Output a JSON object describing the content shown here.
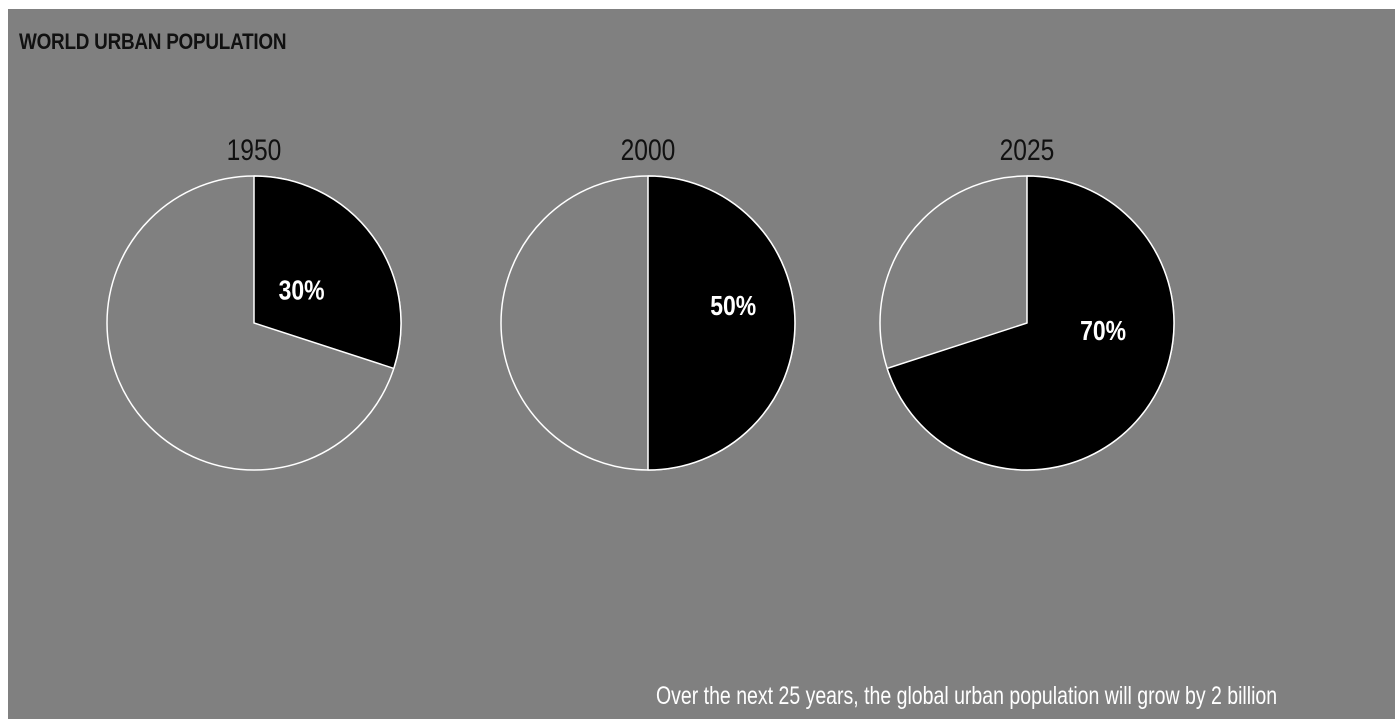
{
  "title": "WORLD URBAN POPULATION",
  "footnote": "Over the next 25 years, the global urban population will grow by 2 billion",
  "colors": {
    "background": "#808080",
    "urban": "#000000",
    "outline": "#ffffff",
    "text_dark": "#111111",
    "text_light": "#ffffff"
  },
  "chart_data": [
    {
      "type": "pie",
      "title": "1950",
      "slices": [
        {
          "label": "30%",
          "value": 30,
          "color": "#000000"
        },
        {
          "label": "",
          "value": 70,
          "color": "#808080"
        }
      ]
    },
    {
      "type": "pie",
      "title": "2000",
      "slices": [
        {
          "label": "50%",
          "value": 50,
          "color": "#000000"
        },
        {
          "label": "",
          "value": 50,
          "color": "#808080"
        }
      ]
    },
    {
      "type": "pie",
      "title": "2025",
      "slices": [
        {
          "label": "70%",
          "value": 70,
          "color": "#000000"
        },
        {
          "label": "",
          "value": 30,
          "color": "#808080"
        }
      ]
    }
  ]
}
